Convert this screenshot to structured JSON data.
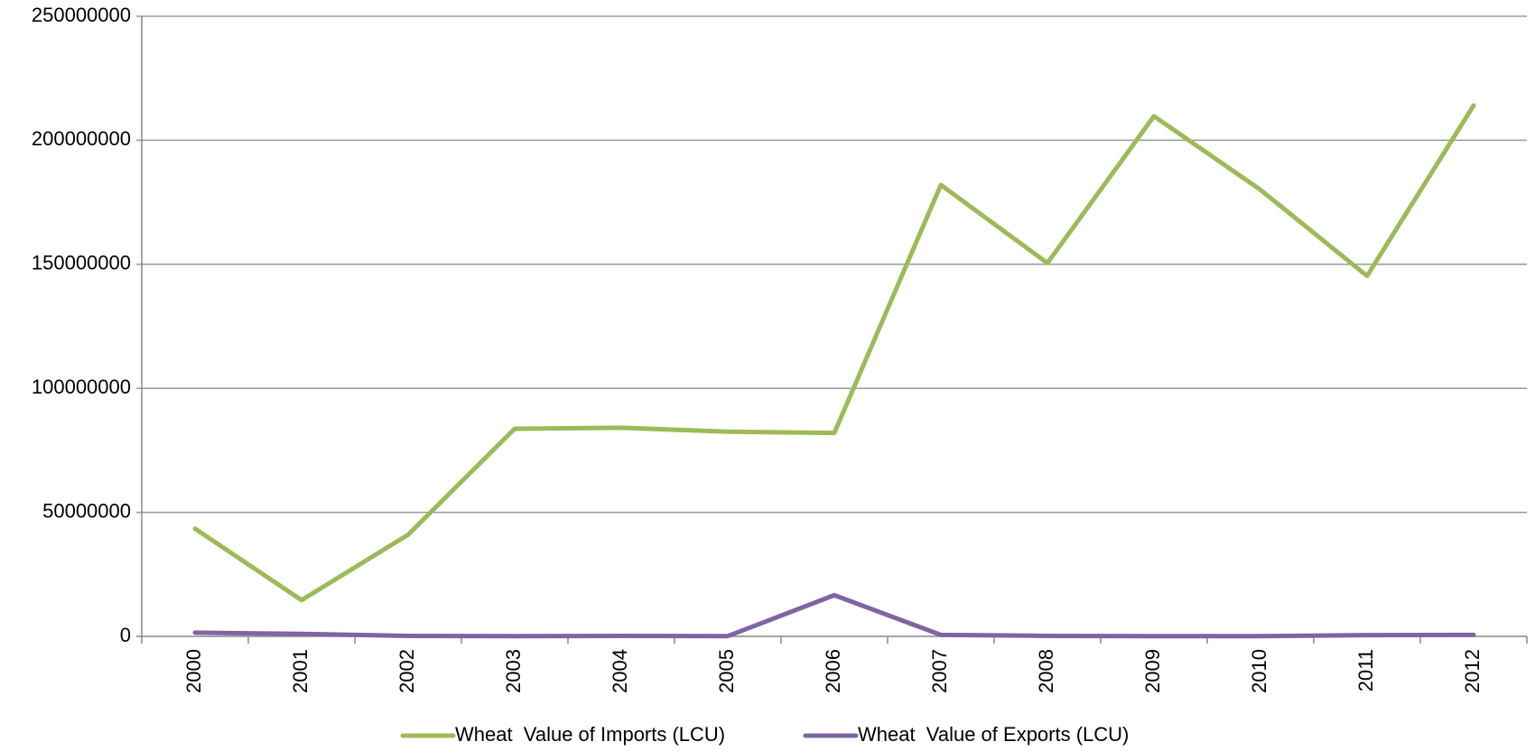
{
  "chart_data": {
    "type": "line",
    "categories": [
      "2000",
      "2001",
      "2002",
      "2003",
      "2004",
      "2005",
      "2006",
      "2007",
      "2008",
      "2009",
      "2010",
      "2011",
      "2012"
    ],
    "series": [
      {
        "name": "Wheat  Value of Imports (LCU)",
        "color": "#9bbb59",
        "values": [
          43400000,
          14600000,
          41000000,
          83700000,
          84100000,
          82500000,
          82000000,
          182000000,
          150500000,
          209700000,
          180000000,
          145300000,
          214000000
        ]
      },
      {
        "name": "Wheat  Value of Exports (LCU)",
        "color": "#8064a2",
        "values": [
          1500000,
          1000000,
          200000,
          100000,
          200000,
          100000,
          16600000,
          600000,
          200000,
          100000,
          100000,
          500000,
          600000
        ]
      }
    ],
    "ylim": [
      0,
      250000000
    ],
    "yticks": [
      0,
      50000000,
      100000000,
      150000000,
      200000000,
      250000000
    ],
    "grid": true,
    "legend": "bottom"
  }
}
